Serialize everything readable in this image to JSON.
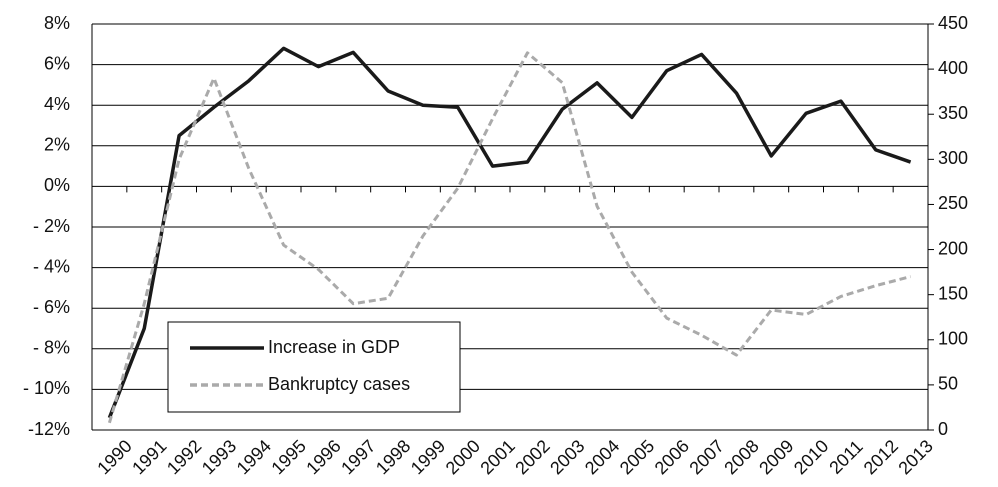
{
  "chart_data": {
    "type": "line",
    "categories": [
      "1990",
      "1991",
      "1992",
      "1993",
      "1994",
      "1995",
      "1996",
      "1997",
      "1998",
      "1999",
      "2000",
      "2001",
      "2002",
      "2003",
      "2004",
      "2005",
      "2006",
      "2007",
      "2008",
      "2009",
      "2010",
      "2011",
      "2012",
      "2013"
    ],
    "series": [
      {
        "name": "Increase in GDP",
        "color": "#1a1a1a",
        "linestyle": "solid",
        "values": [
          -11.4,
          -7.0,
          2.5,
          3.9,
          5.2,
          6.8,
          5.9,
          6.6,
          4.7,
          4.0,
          3.9,
          1.0,
          1.2,
          3.8,
          5.1,
          3.4,
          5.7,
          6.5,
          4.6,
          1.5,
          3.6,
          4.2,
          1.8,
          1.2
        ]
      },
      {
        "name": "Bankruptcy cases",
        "color": "#aaaaaa",
        "linestyle": "dashed",
        "axis": "y2",
        "values": [
          8,
          140,
          300,
          390,
          290,
          205,
          178,
          140,
          146,
          215,
          268,
          345,
          418,
          385,
          248,
          175,
          124,
          105,
          83,
          133,
          128,
          148,
          160,
          170
        ]
      }
    ],
    "ylim": [
      -12,
      8
    ],
    "yticks": [
      {
        "value": -12,
        "label": "-12%"
      },
      {
        "value": -10,
        "label": "- 10%"
      },
      {
        "value": -8,
        "label": "- 8%"
      },
      {
        "value": -6,
        "label": "- 6%"
      },
      {
        "value": -4,
        "label": "- 4%"
      },
      {
        "value": -2,
        "label": "- 2%"
      },
      {
        "value": 0,
        "label": "0%"
      },
      {
        "value": 2,
        "label": "2%"
      },
      {
        "value": 4,
        "label": "4%"
      },
      {
        "value": 6,
        "label": "6%"
      },
      {
        "value": 8,
        "label": "8%"
      }
    ],
    "y2lim": [
      0,
      450
    ],
    "y2ticks": [
      0,
      50,
      100,
      150,
      200,
      250,
      300,
      350,
      400,
      450
    ],
    "grid": true,
    "legend": "lower left"
  }
}
